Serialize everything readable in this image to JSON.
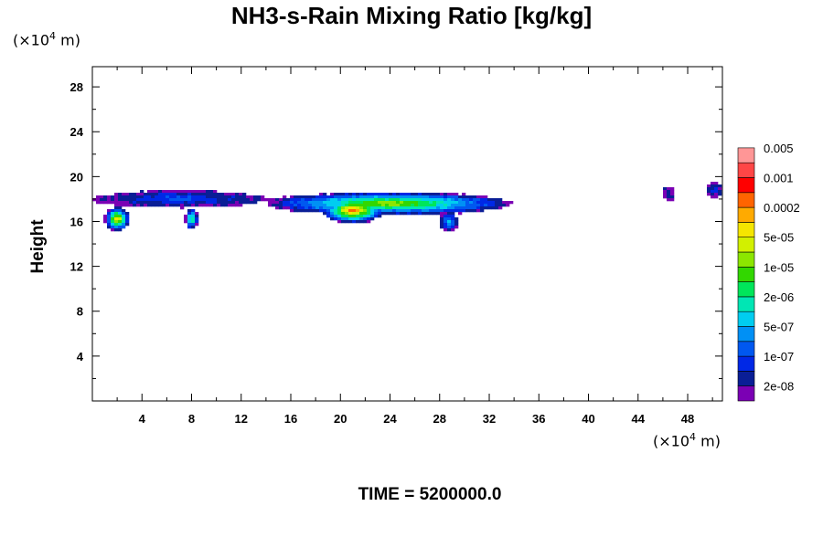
{
  "title": "NH3-s-Rain Mixing Ratio [kg/kg]",
  "y_unit": "(×10",
  "y_unit_exp": "4",
  "y_unit_tail": " m)",
  "x_unit": "(×10",
  "x_unit_exp": "4",
  "x_unit_tail": " m)",
  "time_label": "TIME = 5200000.0",
  "chart_data": {
    "type": "heatmap",
    "title": "NH3-s-Rain Mixing Ratio [kg/kg]",
    "ylabel": "Height",
    "xlabel": "",
    "x_unit": "×10^4 m",
    "y_unit": "×10^4 m",
    "xlim": [
      0,
      50.8
    ],
    "ylim": [
      0,
      29.8
    ],
    "x_ticks": [
      4,
      8,
      12,
      16,
      20,
      24,
      28,
      32,
      36,
      40,
      44,
      48
    ],
    "y_ticks": [
      4,
      8,
      12,
      16,
      20,
      24,
      28
    ],
    "grid": false,
    "colorbar": {
      "placement": "right",
      "colors": [
        "#7b00b4",
        "#0a1e96",
        "#0028e6",
        "#0058f0",
        "#0090f5",
        "#00cdf0",
        "#00e6b4",
        "#00e65a",
        "#32d700",
        "#8ce600",
        "#d2f000",
        "#f5e600",
        "#ffaa00",
        "#ff6400",
        "#ff0000",
        "#ff4646",
        "#ff9696"
      ],
      "labels": [
        "2e-08",
        "1e-07",
        "5e-07",
        "2e-06",
        "1e-05",
        "5e-05",
        "0.0002",
        "0.001",
        "0.005"
      ]
    },
    "regions": [
      {
        "x": [
          0,
          14
        ],
        "y_center": 18.0,
        "level_max": 3
      },
      {
        "x": [
          14,
          34
        ],
        "y_center": 17.6,
        "level_max": 10
      },
      {
        "x": [
          18.5,
          23.5
        ],
        "y_center": 17.0,
        "level_max": 14
      },
      {
        "x": [
          1,
          3
        ],
        "y_center": 16.2,
        "level_max": 12
      },
      {
        "x": [
          7.5,
          8.5
        ],
        "y_center": 16.2,
        "level_max": 8
      },
      {
        "x": [
          28,
          29.5
        ],
        "y_center": 16.0,
        "level_max": 5
      },
      {
        "x": [
          46,
          47
        ],
        "y_center": 18.5,
        "level_max": 1
      },
      {
        "x": [
          49.5,
          50.8
        ],
        "y_center": 18.8,
        "level_max": 2
      }
    ]
  }
}
